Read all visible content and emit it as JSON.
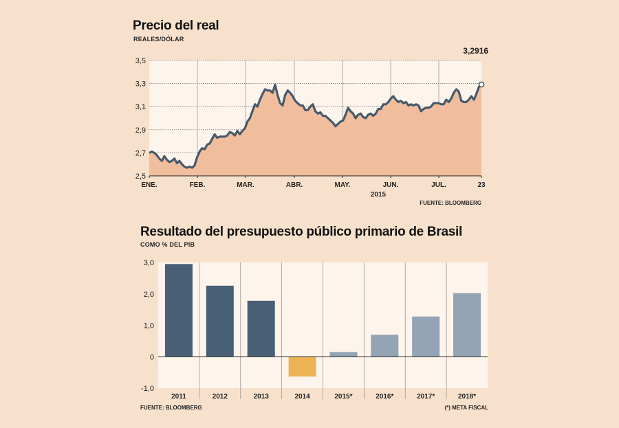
{
  "colors": {
    "background": "#f8e1cc",
    "line": "#475a6a",
    "area": "#f1be9d",
    "panel": "#fdf4ec",
    "bar_actual": "#485f75",
    "bar_negative": "#ebb354",
    "bar_goal": "#93a4b4"
  },
  "chart_data": [
    {
      "type": "line",
      "title": "Precio del real",
      "subtitle": "REALES/DÓLAR",
      "source": "FUENTE: BLOOMBERG",
      "year_label": "2015",
      "ylim": [
        2.5,
        3.5
      ],
      "y_ticks": [
        "3,5",
        "3,3",
        "3,1",
        "2,9",
        "2,7",
        "2,5"
      ],
      "x_ticks": [
        "ENE.",
        "FEB.",
        "MAR.",
        "ABR.",
        "MAY.",
        "JUN.",
        "JUL.",
        "23"
      ],
      "last_value_label": "3,2916",
      "values": [
        2.7,
        2.71,
        2.7,
        2.68,
        2.65,
        2.63,
        2.67,
        2.64,
        2.62,
        2.63,
        2.65,
        2.61,
        2.63,
        2.6,
        2.58,
        2.57,
        2.58,
        2.57,
        2.59,
        2.66,
        2.71,
        2.74,
        2.73,
        2.77,
        2.78,
        2.82,
        2.86,
        2.83,
        2.84,
        2.84,
        2.84,
        2.85,
        2.88,
        2.87,
        2.85,
        2.89,
        2.86,
        2.89,
        2.91,
        2.97,
        3.0,
        3.06,
        3.12,
        3.1,
        3.16,
        3.21,
        3.25,
        3.24,
        3.24,
        3.22,
        3.29,
        3.2,
        3.13,
        3.11,
        3.2,
        3.24,
        3.22,
        3.19,
        3.15,
        3.13,
        3.11,
        3.11,
        3.07,
        3.07,
        3.1,
        3.12,
        3.06,
        3.04,
        3.05,
        3.02,
        3.02,
        3.0,
        2.98,
        2.96,
        2.93,
        2.95,
        2.97,
        2.98,
        3.03,
        3.09,
        3.06,
        3.04,
        3.0,
        3.03,
        3.04,
        3.01,
        3.0,
        3.03,
        3.04,
        3.02,
        3.04,
        3.08,
        3.08,
        3.12,
        3.12,
        3.14,
        3.17,
        3.19,
        3.16,
        3.14,
        3.15,
        3.13,
        3.14,
        3.11,
        3.12,
        3.11,
        3.12,
        3.11,
        3.06,
        3.08,
        3.09,
        3.09,
        3.1,
        3.13,
        3.13,
        3.13,
        3.12,
        3.12,
        3.16,
        3.14,
        3.17,
        3.22,
        3.25,
        3.23,
        3.15,
        3.14,
        3.14,
        3.16,
        3.19,
        3.16,
        3.21,
        3.27,
        3.2916
      ]
    },
    {
      "type": "bar",
      "title": "Resultado del presupuesto público primario de Brasil",
      "subtitle": "COMO % DEL PIB",
      "source": "FUENTE: BLOOMBERG",
      "note": "(*) META FISCAL",
      "ylim": [
        -1.0,
        3.0
      ],
      "y_ticks": [
        "3,0",
        "2,0",
        "1,0",
        "0",
        "-1,0"
      ],
      "y_tick_values": [
        3.0,
        2.0,
        1.0,
        0,
        -1.0
      ],
      "categories": [
        "2011",
        "2012",
        "2013",
        "2014",
        "2015*",
        "2016*",
        "2017*",
        "2018*"
      ],
      "values": [
        2.95,
        2.26,
        1.78,
        -0.63,
        0.15,
        0.7,
        1.28,
        2.02
      ],
      "kind": [
        "actual",
        "actual",
        "actual",
        "negative",
        "goal",
        "goal",
        "goal",
        "goal"
      ]
    }
  ]
}
